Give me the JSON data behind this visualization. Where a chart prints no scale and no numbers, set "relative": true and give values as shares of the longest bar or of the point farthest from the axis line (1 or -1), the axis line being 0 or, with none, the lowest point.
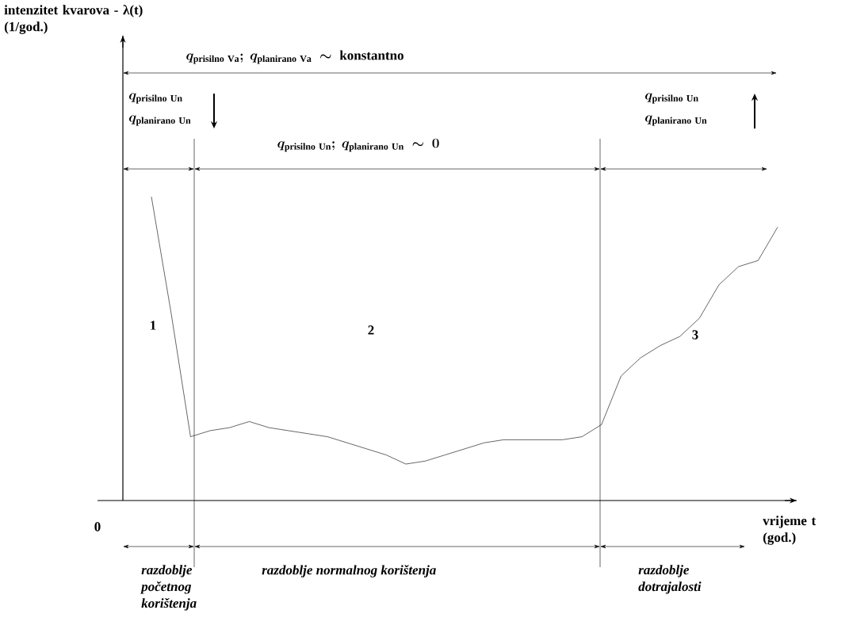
{
  "chart_data": {
    "type": "line",
    "relative": true,
    "xlabel": "vrijeme t (god.)",
    "categories": [
      null,
      null,
      null,
      null,
      null,
      null,
      null,
      null,
      null,
      null,
      null,
      null,
      null,
      null,
      null,
      null,
      null,
      null,
      null,
      null,
      null,
      null,
      null,
      null,
      null,
      null,
      null,
      null,
      null,
      null,
      null,
      null,
      null
    ],
    "series": [
      {
        "color": "#000000",
        "values": [
          1.0,
          0.62,
          0.21,
          0.23,
          0.24,
          0.26,
          0.24,
          0.23,
          0.22,
          0.21,
          0.19,
          0.17,
          0.15,
          0.12,
          0.13,
          0.15,
          0.17,
          0.19,
          0.2,
          0.2,
          0.2,
          0.2,
          0.21,
          0.25,
          0.41,
          0.47,
          0.51,
          0.54,
          0.6,
          0.71,
          0.77,
          0.79,
          0.9
        ]
      }
    ],
    "annotations": [
      "q_{\\mathrm{prisilno\\ Va}};\\ q_{\\mathrm{planirano\\ Va}}\\ \\sim\\ \\mathrm{konstantno}",
      "q_{\\mathrm{prisilno\\ Un}}",
      "q_{\\mathrm{planirano\\ Un}}",
      "q_{\\mathrm{prisilno\\ Un}};\\ q_{\\mathrm{planirano\\ Un}}\\ \\sim\\ 0",
      "q_{\\mathrm{prisilno\\ Un}}",
      "q_{\\mathrm{planirano\\ Un}}",
      "1",
      "2",
      "3",
      "0",
      "razdoblje početnog korištenja",
      "razdoblje normalnog korištenja",
      "razdoblje dotrajalosti",
      "intenzitet kvarova - λ(t) (1/god.)"
    ],
    "marker": "none",
    "line_style": "solid"
  }
}
